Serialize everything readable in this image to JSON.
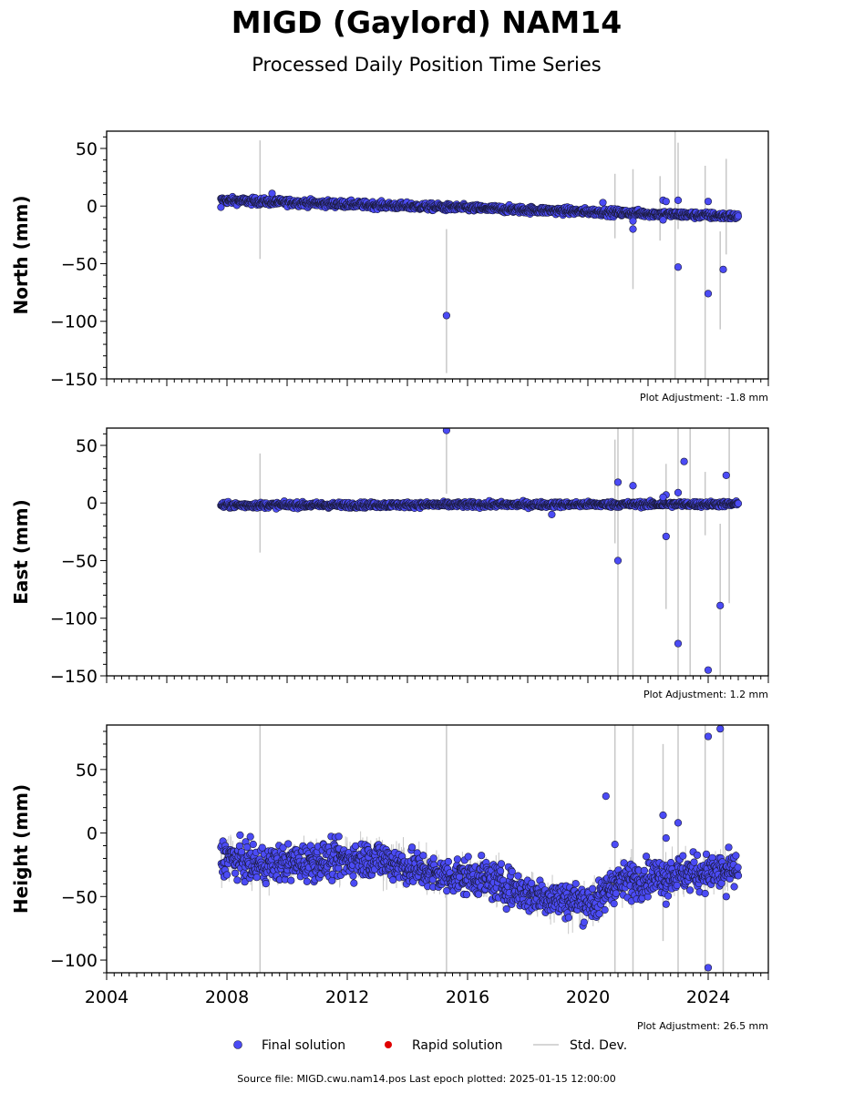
{
  "title": "MIGD (Gaylord) NAM14",
  "subtitle": "Processed Daily Position Time Series",
  "source_note": "Source file: MIGD.cwu.nam14.pos  Last epoch plotted: 2025-01-15 12:00:00",
  "legend": {
    "final_label": "Final solution",
    "rapid_label": "Rapid solution",
    "std_label": "Std. Dev."
  },
  "colors": {
    "final": "#4b4bf5",
    "final_edge": "#1a1a3a",
    "rapid": "#e00000",
    "std": "#c8c8c8"
  },
  "chart_data": [
    {
      "type": "scatter",
      "ylabel": "North (mm)",
      "ylim": [
        -150,
        65
      ],
      "xlim": [
        2004,
        2026
      ],
      "yticks": [
        50,
        0,
        -50,
        -100,
        -150
      ],
      "y_minor_step": 10,
      "x_tick_labels_shown": false,
      "adjustment": "Plot Adjustment: -1.8 mm",
      "trend": {
        "start": [
          2007.8,
          5
        ],
        "end": [
          2025.0,
          -9
        ]
      },
      "scatter_noise": 1.5,
      "series": [
        {
          "name": "Final solution",
          "outliers": [
            {
              "x": 2007.8,
              "y": -1
            },
            {
              "x": 2009.5,
              "y": 11
            },
            {
              "x": 2015.3,
              "y": -95
            },
            {
              "x": 2020.5,
              "y": 3
            },
            {
              "x": 2021.5,
              "y": -13
            },
            {
              "x": 2021.5,
              "y": -20
            },
            {
              "x": 2022.5,
              "y": 5
            },
            {
              "x": 2022.6,
              "y": 4
            },
            {
              "x": 2022.5,
              "y": -12
            },
            {
              "x": 2023.0,
              "y": -53
            },
            {
              "x": 2023.0,
              "y": 5
            },
            {
              "x": 2024.0,
              "y": 4
            },
            {
              "x": 2024.0,
              "y": -76
            },
            {
              "x": 2024.5,
              "y": -55
            }
          ],
          "errorbars": [
            {
              "x": 2009.1,
              "lo": -46,
              "hi": 57
            },
            {
              "x": 2015.3,
              "lo": -145,
              "hi": -20
            },
            {
              "x": 2020.9,
              "lo": -28,
              "hi": 28
            },
            {
              "x": 2021.5,
              "lo": -72,
              "hi": 32
            },
            {
              "x": 2022.4,
              "lo": -30,
              "hi": 26
            },
            {
              "x": 2022.9,
              "lo": -150,
              "hi": 65
            },
            {
              "x": 2023.0,
              "lo": -20,
              "hi": 55
            },
            {
              "x": 2023.9,
              "lo": -150,
              "hi": 35
            },
            {
              "x": 2024.4,
              "lo": -107,
              "hi": -22
            },
            {
              "x": 2024.6,
              "lo": -42,
              "hi": 41
            }
          ]
        }
      ]
    },
    {
      "type": "scatter",
      "ylabel": "East (mm)",
      "ylim": [
        -150,
        65
      ],
      "xlim": [
        2004,
        2026
      ],
      "yticks": [
        50,
        0,
        -50,
        -100,
        -150
      ],
      "y_minor_step": 10,
      "x_tick_labels_shown": false,
      "adjustment": "Plot Adjustment: 1.2 mm",
      "trend": {
        "start": [
          2007.8,
          -2
        ],
        "end": [
          2025.0,
          -1
        ]
      },
      "scatter_noise": 1.2,
      "series": [
        {
          "name": "Final solution",
          "outliers": [
            {
              "x": 2015.3,
              "y": 63
            },
            {
              "x": 2018.8,
              "y": -10
            },
            {
              "x": 2021.0,
              "y": 18
            },
            {
              "x": 2021.5,
              "y": 15
            },
            {
              "x": 2021.0,
              "y": -50
            },
            {
              "x": 2022.6,
              "y": 7
            },
            {
              "x": 2022.5,
              "y": 5
            },
            {
              "x": 2022.6,
              "y": -29
            },
            {
              "x": 2023.0,
              "y": 9
            },
            {
              "x": 2023.2,
              "y": 36
            },
            {
              "x": 2023.0,
              "y": -122
            },
            {
              "x": 2024.0,
              "y": -145
            },
            {
              "x": 2024.4,
              "y": -89
            },
            {
              "x": 2024.6,
              "y": 24
            }
          ],
          "errorbars": [
            {
              "x": 2009.1,
              "lo": -43,
              "hi": 43
            },
            {
              "x": 2015.3,
              "lo": 8,
              "hi": 65
            },
            {
              "x": 2020.9,
              "lo": -35,
              "hi": 55
            },
            {
              "x": 2021.0,
              "lo": -150,
              "hi": 65
            },
            {
              "x": 2021.5,
              "lo": -150,
              "hi": 65
            },
            {
              "x": 2022.6,
              "lo": -92,
              "hi": 34
            },
            {
              "x": 2023.0,
              "lo": -150,
              "hi": 65
            },
            {
              "x": 2023.4,
              "lo": -150,
              "hi": 65
            },
            {
              "x": 2023.9,
              "lo": -28,
              "hi": 27
            },
            {
              "x": 2024.4,
              "lo": -150,
              "hi": -18
            },
            {
              "x": 2024.7,
              "lo": -87,
              "hi": 65
            }
          ]
        }
      ]
    },
    {
      "type": "scatter",
      "ylabel": "Height (mm)",
      "ylim": [
        -110,
        85
      ],
      "xlim": [
        2004,
        2026
      ],
      "yticks": [
        50,
        0,
        -50,
        -100
      ],
      "y_minor_step": 10,
      "xticks": [
        2004,
        2008,
        2012,
        2016,
        2020,
        2024
      ],
      "x_minor_step": 0.25,
      "x_tick_labels_shown": true,
      "adjustment": "Plot Adjustment: 26.5 mm",
      "profile": [
        [
          2007.8,
          -18
        ],
        [
          2009.0,
          -25
        ],
        [
          2011.0,
          -22
        ],
        [
          2013.0,
          -20
        ],
        [
          2015.0,
          -33
        ],
        [
          2016.5,
          -35
        ],
        [
          2018.0,
          -48
        ],
        [
          2019.5,
          -53
        ],
        [
          2020.3,
          -55
        ],
        [
          2020.8,
          -40
        ],
        [
          2022.0,
          -35
        ],
        [
          2023.0,
          -32
        ],
        [
          2025.0,
          -30
        ]
      ],
      "scatter_noise": 7,
      "series": [
        {
          "name": "Final solution",
          "outliers": [
            {
              "x": 2020.6,
              "y": 29
            },
            {
              "x": 2020.9,
              "y": -9
            },
            {
              "x": 2022.5,
              "y": 14
            },
            {
              "x": 2022.6,
              "y": -4
            },
            {
              "x": 2022.6,
              "y": -56
            },
            {
              "x": 2023.0,
              "y": 8
            },
            {
              "x": 2024.0,
              "y": 76
            },
            {
              "x": 2024.4,
              "y": 82
            },
            {
              "x": 2024.0,
              "y": -106
            },
            {
              "x": 2024.6,
              "y": -50
            }
          ],
          "errorbars": [
            {
              "x": 2009.1,
              "lo": -110,
              "hi": 85
            },
            {
              "x": 2015.3,
              "lo": -110,
              "hi": 85
            },
            {
              "x": 2020.9,
              "lo": -110,
              "hi": 85
            },
            {
              "x": 2021.5,
              "lo": -110,
              "hi": 85
            },
            {
              "x": 2022.5,
              "lo": -85,
              "hi": 70
            },
            {
              "x": 2023.0,
              "lo": -110,
              "hi": 85
            },
            {
              "x": 2023.9,
              "lo": -110,
              "hi": 85
            },
            {
              "x": 2024.5,
              "lo": -110,
              "hi": 85
            }
          ]
        }
      ]
    }
  ]
}
